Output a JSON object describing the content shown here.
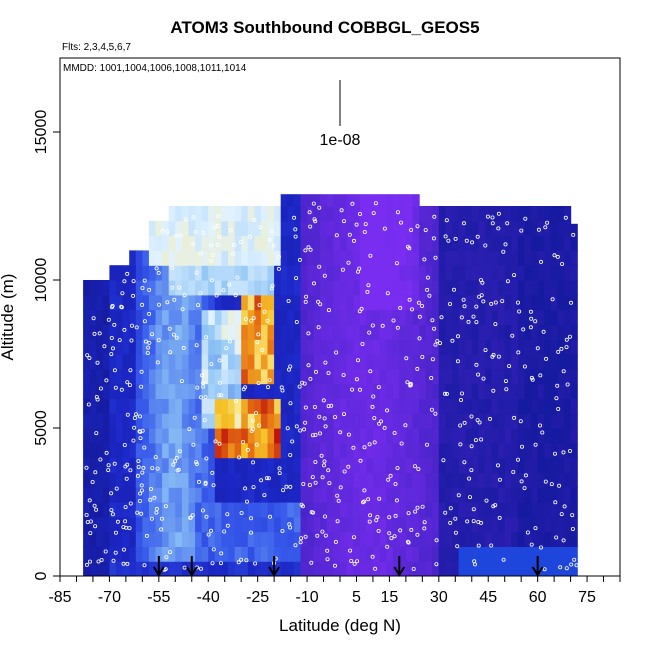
{
  "chart_data": {
    "type": "heatmap",
    "title": "ATOM3 Southbound COBBGL_GEOS5",
    "subtitle_flights": "Flts: 2,3,4,5,6,7",
    "subtitle_dates": "MMDD: 1001,1004,1006,1008,1011,1014",
    "xlabel": "Latitude (deg N)",
    "ylabel": "Altitude (m)",
    "xlim": [
      -85,
      85
    ],
    "ylim": [
      0,
      17500
    ],
    "x_ticks": [
      -85,
      -70,
      -55,
      -40,
      -25,
      -10,
      5,
      15,
      30,
      45,
      60,
      75
    ],
    "y_ticks": [
      0,
      5000,
      10000,
      15000
    ],
    "scale_annotation": "1e-08",
    "arrow_latitudes": [
      -55,
      -45,
      -20,
      18,
      60
    ],
    "grid": false,
    "colors": {
      "low": "#1a1fc4",
      "mid": "#5a2ae0",
      "high_purple": "#7a3bff",
      "light": "#e6f4ff",
      "peak_yellow": "#f6d02a",
      "peak_red": "#c21a0a"
    }
  }
}
